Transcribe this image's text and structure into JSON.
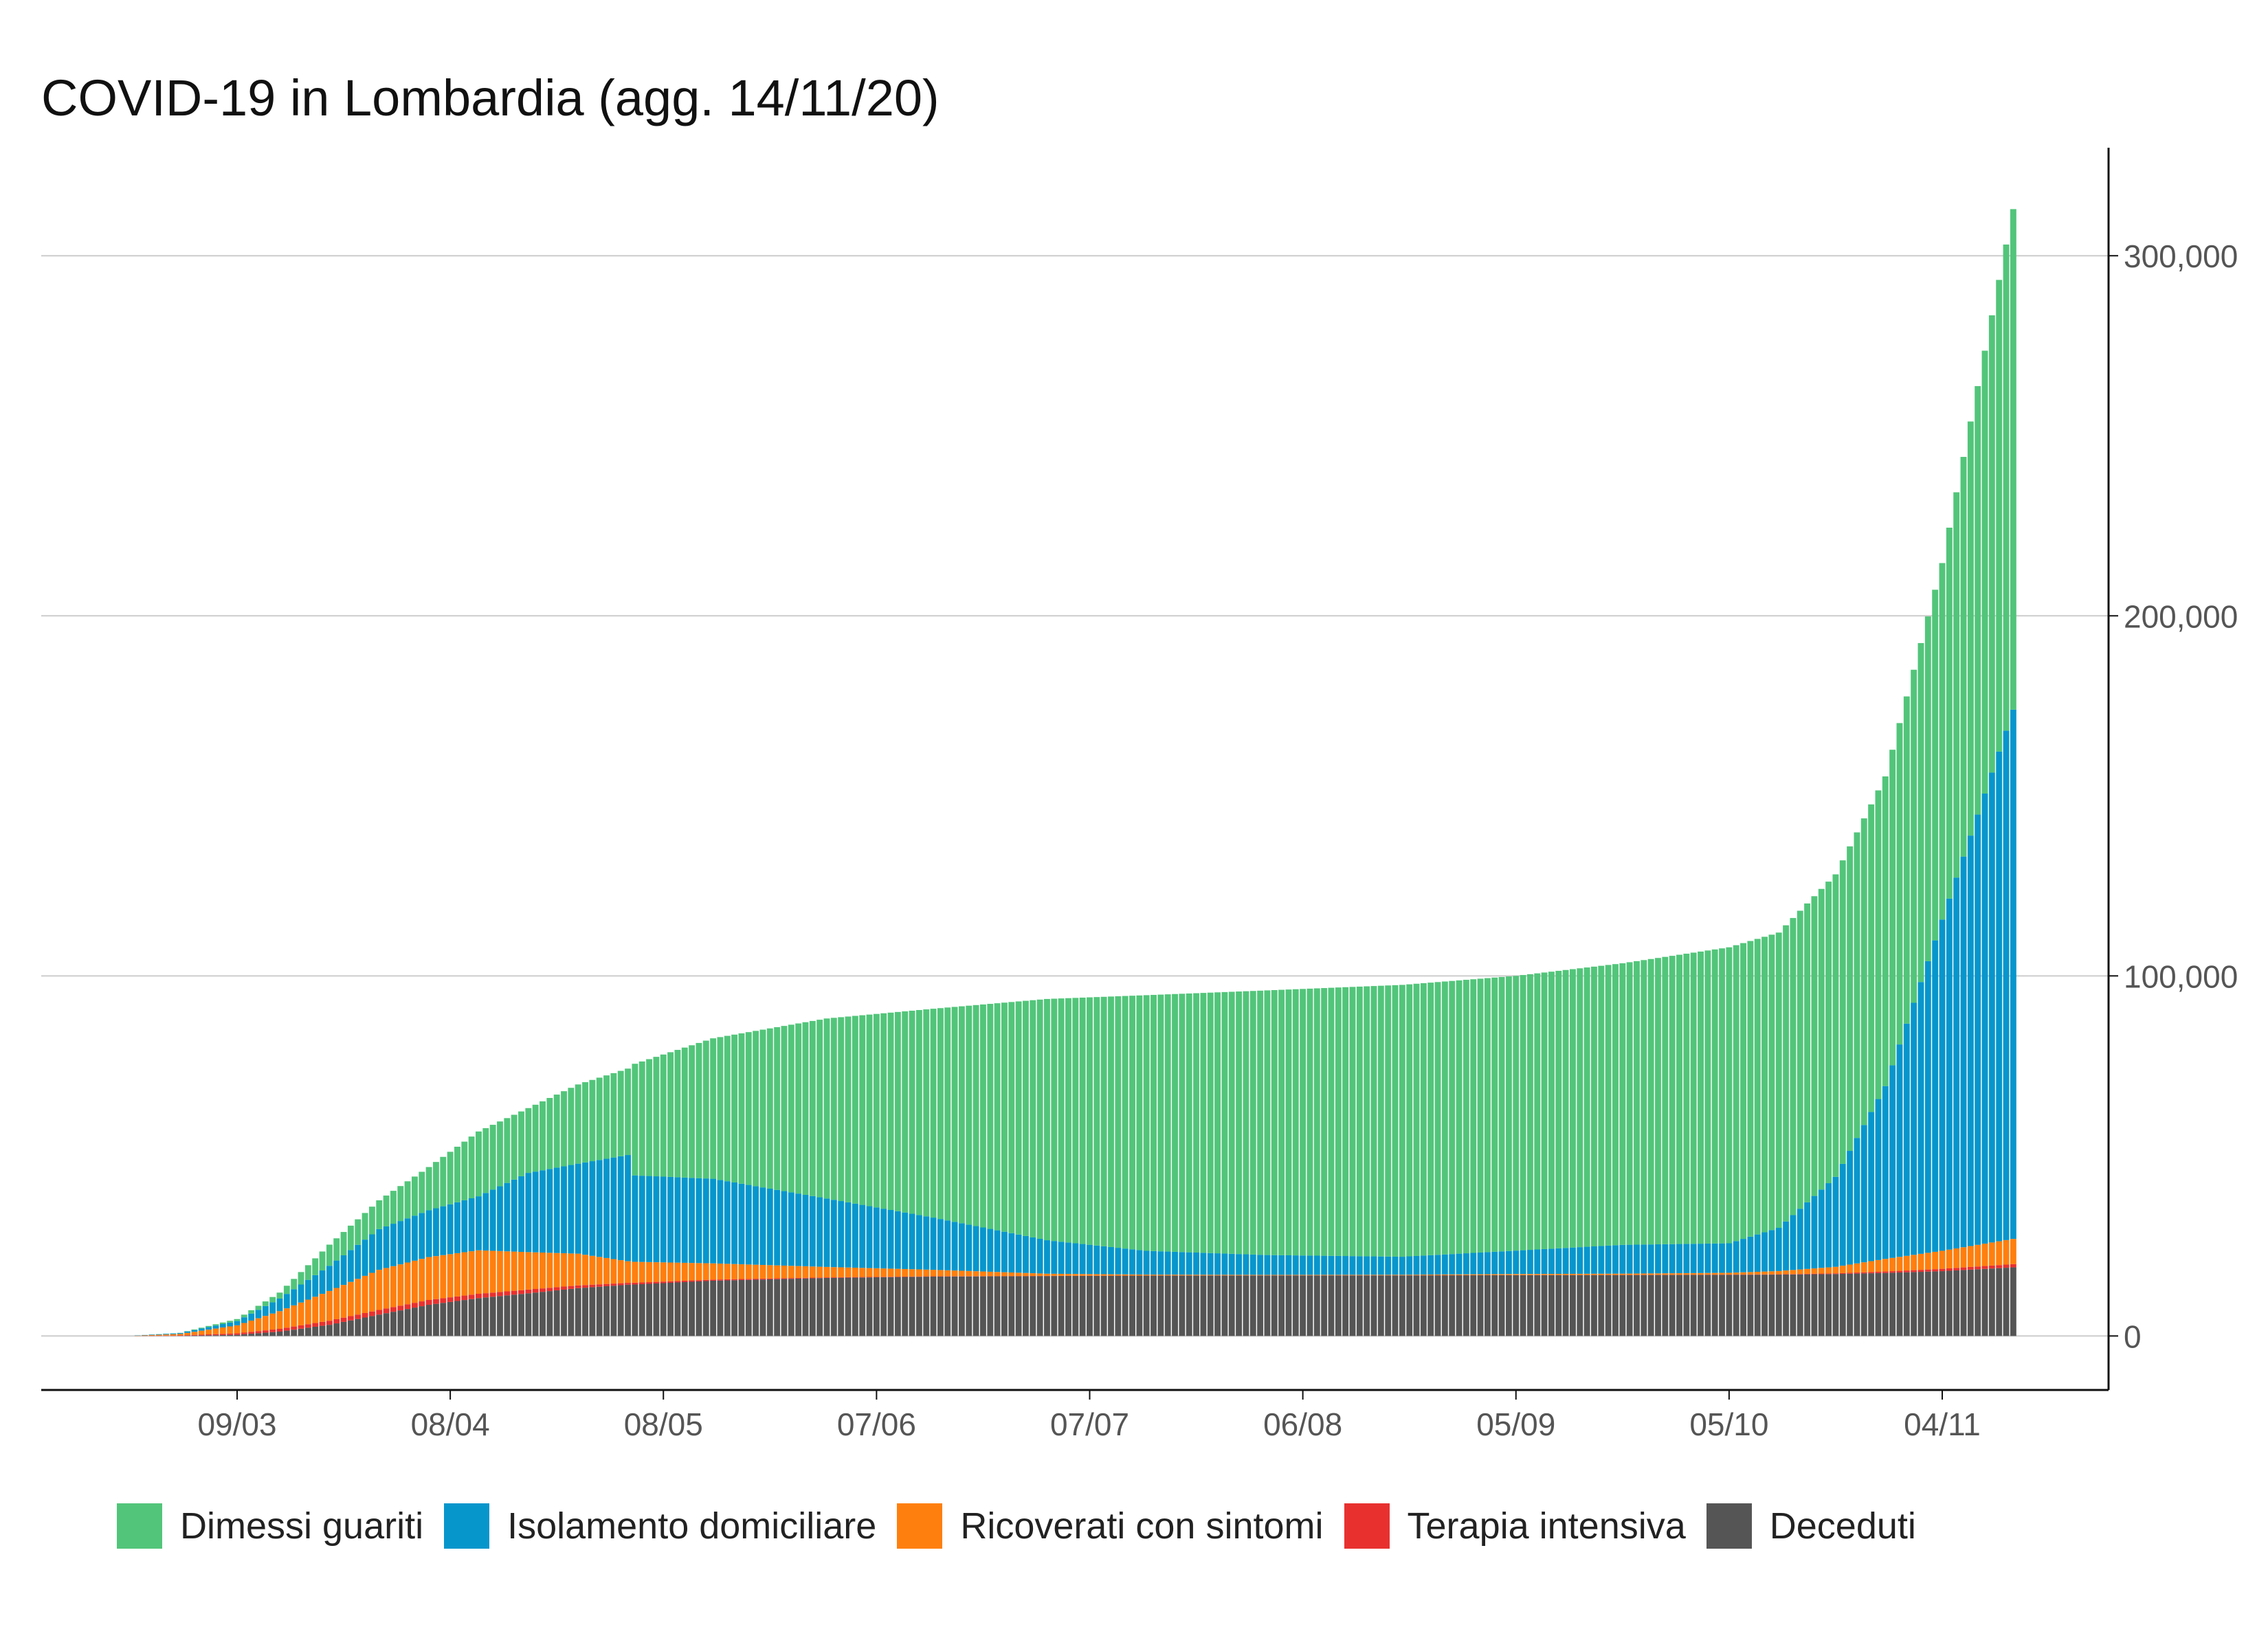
{
  "title": "COVID-19 in Lombardia (agg. 14/11/20)",
  "colors": {
    "dimessi_guariti": "#52c57a",
    "isolamento_domiciliare": "#0796cc",
    "ricoverati_con_sintomi": "#ff7f0e",
    "terapia_intensiva": "#e8312f",
    "deceduti": "#555555",
    "grid": "#cccccc",
    "axis": "#111111",
    "tick_text": "#555555"
  },
  "legend": [
    {
      "key": "dimessi_guariti",
      "label": "Dimessi guariti",
      "color": "#52c57a"
    },
    {
      "key": "isolamento_domiciliare",
      "label": "Isolamento domiciliare",
      "color": "#0796cc"
    },
    {
      "key": "ricoverati_con_sintomi",
      "label": "Ricoverati con sintomi",
      "color": "#ff7f0e"
    },
    {
      "key": "terapia_intensiva",
      "label": "Terapia intensiva",
      "color": "#e8312f"
    },
    {
      "key": "deceduti",
      "label": "Deceduti",
      "color": "#555555"
    }
  ],
  "chart_data": {
    "type": "bar",
    "stacked": true,
    "title": "COVID-19 in Lombardia (agg. 14/11/20)",
    "xlabel": "",
    "ylabel": "",
    "x_range": [
      "2020-02-24",
      "2020-11-14"
    ],
    "ylim": [
      -15000,
      330000
    ],
    "yticks": [
      0,
      100000,
      200000,
      300000
    ],
    "ytick_labels": [
      "0",
      "100,000",
      "200,000",
      "300,000"
    ],
    "y_axis_position": "right",
    "xtick_dates": [
      "2020-03-09",
      "2020-04-08",
      "2020-05-08",
      "2020-06-07",
      "2020-07-07",
      "2020-08-06",
      "2020-09-05",
      "2020-10-05",
      "2020-11-04"
    ],
    "xtick_labels": [
      "09/03",
      "08/04",
      "08/05",
      "07/06",
      "07/07",
      "06/08",
      "05/09",
      "05/10",
      "04/11"
    ],
    "grid": "horizontal",
    "legend_position": "bottom",
    "stack_order": [
      "Deceduti",
      "Terapia intensiva",
      "Ricoverati con sintomi",
      "Isolamento domiciliare",
      "Dimessi guariti"
    ],
    "keyframes": [
      {
        "date": "2020-02-24",
        "values": {
          "Deceduti": 6,
          "Terapia intensiva": 19,
          "Ricoverati con sintomi": 76,
          "Isolamento domiciliare": 71,
          "Dimessi guariti": 0
        }
      },
      {
        "date": "2020-03-01",
        "values": {
          "Deceduti": 38,
          "Terapia intensiva": 127,
          "Ricoverati con sintomi": 406,
          "Isolamento domiciliare": 250,
          "Dimessi guariti": 40
        }
      },
      {
        "date": "2020-03-09",
        "values": {
          "Deceduti": 333,
          "Terapia intensiva": 399,
          "Ricoverati con sintomi": 2217,
          "Isolamento domiciliare": 1200,
          "Dimessi guariti": 550
        }
      },
      {
        "date": "2020-03-15",
        "values": {
          "Deceduti": 1218,
          "Terapia intensiva": 767,
          "Ricoverati con sintomi": 4898,
          "Isolamento domiciliare": 3500,
          "Dimessi guariti": 1660
        }
      },
      {
        "date": "2020-03-22",
        "values": {
          "Deceduti": 3095,
          "Terapia intensiva": 1142,
          "Ricoverati con sintomi": 8258,
          "Isolamento domiciliare": 7000,
          "Dimessi guariti": 5865
        }
      },
      {
        "date": "2020-03-29",
        "values": {
          "Deceduti": 5944,
          "Terapia intensiva": 1292,
          "Ricoverati con sintomi": 11137,
          "Isolamento domiciliare": 11300,
          "Dimessi guariti": 8000
        }
      },
      {
        "date": "2020-04-05",
        "values": {
          "Deceduti": 8656,
          "Terapia intensiva": 1343,
          "Ricoverati con sintomi": 11914,
          "Isolamento domiciliare": 13000,
          "Dimessi guariti": 12000
        }
      },
      {
        "date": "2020-04-12",
        "values": {
          "Deceduti": 10511,
          "Terapia intensiva": 1202,
          "Ricoverati con sintomi": 12077,
          "Isolamento domiciliare": 15000,
          "Dimessi guariti": 18000
        }
      },
      {
        "date": "2020-04-19",
        "values": {
          "Deceduti": 11851,
          "Terapia intensiva": 1032,
          "Ricoverati con sintomi": 10400,
          "Isolamento domiciliare": 22000,
          "Dimessi guariti": 18000
        }
      },
      {
        "date": "2020-04-26",
        "values": {
          "Deceduti": 13269,
          "Terapia intensiva": 781,
          "Ricoverati con sintomi": 8800,
          "Isolamento domiciliare": 25000,
          "Dimessi guariti": 22000
        }
      },
      {
        "date": "2020-05-03",
        "values": {
          "Deceduti": 14231,
          "Terapia intensiva": 519,
          "Ricoverati con sintomi": 6000,
          "Isolamento domiciliare": 29500,
          "Dimessi guariti": 24000
        }
      },
      {
        "date": "2020-05-04",
        "values": {
          "Deceduti": 14294,
          "Terapia intensiva": 500,
          "Ricoverati con sintomi": 5800,
          "Isolamento domiciliare": 24000,
          "Dimessi guariti": 31000
        }
      },
      {
        "date": "2020-05-15",
        "values": {
          "Deceduti": 15340,
          "Terapia intensiva": 320,
          "Ricoverati con sintomi": 4500,
          "Isolamento domiciliare": 23500,
          "Dimessi guariti": 39000
        }
      },
      {
        "date": "2020-05-31",
        "values": {
          "Deceduti": 16112,
          "Terapia intensiva": 160,
          "Ricoverati con sintomi": 2900,
          "Isolamento domiciliare": 19000,
          "Dimessi guariti": 50000
        }
      },
      {
        "date": "2020-06-15",
        "values": {
          "Deceduti": 16500,
          "Terapia intensiva": 80,
          "Ricoverati con sintomi": 1800,
          "Isolamento domiciliare": 14500,
          "Dimessi guariti": 58000
        }
      },
      {
        "date": "2020-07-01",
        "values": {
          "Deceduti": 16650,
          "Terapia intensiva": 40,
          "Ricoverati con sintomi": 600,
          "Isolamento domiciliare": 9300,
          "Dimessi guariti": 67000
        }
      },
      {
        "date": "2020-07-15",
        "values": {
          "Deceduti": 16780,
          "Terapia intensiva": 15,
          "Ricoverati con sintomi": 250,
          "Isolamento domiciliare": 6600,
          "Dimessi guariti": 71000
        }
      },
      {
        "date": "2020-08-01",
        "values": {
          "Deceduti": 16815,
          "Terapia intensiva": 12,
          "Ricoverati con sintomi": 150,
          "Isolamento domiciliare": 5500,
          "Dimessi guariti": 73500
        }
      },
      {
        "date": "2020-08-20",
        "values": {
          "Deceduti": 16830,
          "Terapia intensiva": 15,
          "Ricoverati con sintomi": 160,
          "Isolamento domiciliare": 5000,
          "Dimessi guariti": 75500
        }
      },
      {
        "date": "2020-09-05",
        "values": {
          "Deceduti": 16880,
          "Terapia intensiva": 25,
          "Ricoverati con sintomi": 300,
          "Isolamento domiciliare": 6500,
          "Dimessi guariti": 76300
        }
      },
      {
        "date": "2020-09-20",
        "values": {
          "Deceduti": 16920,
          "Terapia intensiva": 35,
          "Ricoverati con sintomi": 350,
          "Isolamento domiciliare": 8000,
          "Dimessi guariti": 78200
        }
      },
      {
        "date": "2020-10-05",
        "values": {
          "Deceduti": 16990,
          "Terapia intensiva": 50,
          "Ricoverati con sintomi": 500,
          "Isolamento domiciliare": 8200,
          "Dimessi guariti": 82200
        }
      },
      {
        "date": "2020-10-12",
        "values": {
          "Deceduti": 17050,
          "Terapia intensiva": 80,
          "Ricoverati con sintomi": 900,
          "Isolamento domiciliare": 12000,
          "Dimessi guariti": 82000
        }
      },
      {
        "date": "2020-10-20",
        "values": {
          "Deceduti": 17200,
          "Terapia intensiva": 200,
          "Ricoverati con sintomi": 1800,
          "Isolamento domiciliare": 25000,
          "Dimessi guariti": 84000
        }
      },
      {
        "date": "2020-10-27",
        "values": {
          "Deceduti": 17500,
          "Terapia intensiva": 400,
          "Ricoverati con sintomi": 3500,
          "Isolamento domiciliare": 48000,
          "Dimessi guariti": 86000
        }
      },
      {
        "date": "2020-11-04",
        "values": {
          "Deceduti": 18000,
          "Terapia intensiva": 650,
          "Ricoverati con sintomi": 5000,
          "Isolamento domiciliare": 92000,
          "Dimessi guariti": 99000
        }
      },
      {
        "date": "2020-11-14",
        "values": {
          "Deceduti": 19050,
          "Terapia intensiva": 900,
          "Ricoverati con sintomi": 7000,
          "Isolamento domiciliare": 147000,
          "Dimessi guariti": 139000
        }
      }
    ]
  }
}
